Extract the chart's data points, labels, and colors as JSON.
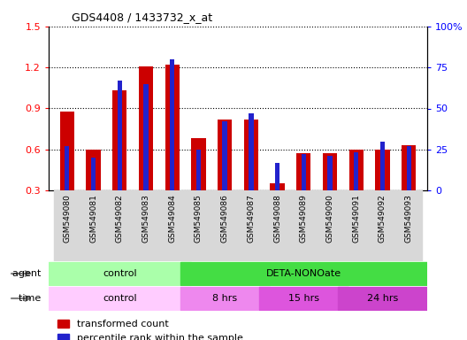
{
  "title": "GDS4408 / 1433732_x_at",
  "samples": [
    "GSM549080",
    "GSM549081",
    "GSM549082",
    "GSM549083",
    "GSM549084",
    "GSM549085",
    "GSM549086",
    "GSM549087",
    "GSM549088",
    "GSM549089",
    "GSM549090",
    "GSM549091",
    "GSM549092",
    "GSM549093"
  ],
  "red_values": [
    0.88,
    0.6,
    1.03,
    1.21,
    1.22,
    0.68,
    0.82,
    0.82,
    0.35,
    0.57,
    0.57,
    0.6,
    0.6,
    0.63
  ],
  "blue_values_pct": [
    27,
    20,
    67,
    65,
    80,
    25,
    42,
    47,
    17,
    22,
    21,
    23,
    30,
    27
  ],
  "ylim_left": [
    0.3,
    1.5
  ],
  "ylim_right": [
    0,
    100
  ],
  "yticks_left": [
    0.3,
    0.6,
    0.9,
    1.2,
    1.5
  ],
  "yticks_right": [
    0,
    25,
    50,
    75,
    100
  ],
  "ytick_labels_right": [
    "0",
    "25",
    "50",
    "75",
    "100%"
  ],
  "red_color": "#cc0000",
  "blue_color": "#2222cc",
  "red_bar_width": 0.55,
  "blue_bar_width": 0.18,
  "grid_color": "black",
  "agent_row": [
    {
      "label": "control",
      "start": 0,
      "end": 5,
      "color": "#aaffaa"
    },
    {
      "label": "DETA-NONOate",
      "start": 5,
      "end": 14,
      "color": "#44dd44"
    }
  ],
  "time_row": [
    {
      "label": "control",
      "start": 0,
      "end": 5,
      "color": "#ffccff"
    },
    {
      "label": "8 hrs",
      "start": 5,
      "end": 8,
      "color": "#ee88ee"
    },
    {
      "label": "15 hrs",
      "start": 8,
      "end": 11,
      "color": "#dd55dd"
    },
    {
      "label": "24 hrs",
      "start": 11,
      "end": 14,
      "color": "#cc44cc"
    }
  ],
  "legend_red_label": "transformed count",
  "legend_blue_label": "percentile rank within the sample",
  "xtick_bg": "#d8d8d8"
}
